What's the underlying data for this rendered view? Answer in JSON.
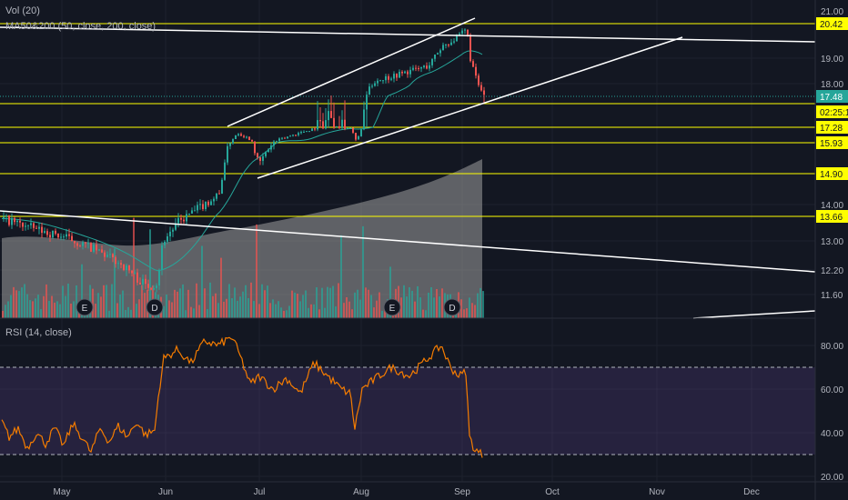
{
  "legends": {
    "volume": "Vol (20)",
    "moving_averages": "MA50&200 (50, close, 200, close)",
    "rsi": "RSI (14, close)"
  },
  "price_axis": {
    "ticks": [
      "21.00",
      "19.00",
      "18.00",
      "14.00",
      "13.00",
      "12.20",
      "11.60"
    ],
    "horizontal_levels": [
      {
        "label": "20.42",
        "value": 20.42,
        "color": "#ffff00"
      },
      {
        "label": "17.28",
        "value": 17.28,
        "color": "#ffff00"
      },
      {
        "label": "15.93",
        "value": 15.93,
        "color": "#ffff00"
      },
      {
        "label": "14.90",
        "value": 14.9,
        "color": "#ffff00"
      },
      {
        "label": "13.66",
        "value": 13.66,
        "color": "#ffff00"
      }
    ],
    "last_price": {
      "label": "17.48",
      "value": 17.48,
      "color": "#26a69a"
    },
    "countdown": "02:25:1",
    "countdown_color": "#ffff00"
  },
  "rsi_axis": {
    "ticks": [
      "80.00",
      "60.00",
      "40.00",
      "20.00"
    ],
    "upper_band": 70,
    "lower_band": 30
  },
  "time_axis": {
    "labels": [
      "May",
      "Jun",
      "Jul",
      "Aug",
      "Sep",
      "Oct",
      "Nov",
      "Dec"
    ]
  },
  "events": [
    {
      "label": "E",
      "type": "earnings"
    },
    {
      "label": "D",
      "type": "dividend"
    },
    {
      "label": "E",
      "type": "earnings"
    },
    {
      "label": "D",
      "type": "dividend"
    }
  ],
  "colors": {
    "background": "#131722",
    "up": "#26a69a",
    "down": "#ef5350",
    "rsi_line": "#f57c00",
    "rsi_band": "#7e57c2",
    "level_line": "#ffff00",
    "trendline": "#ffffff",
    "ma_line": "#26a69a",
    "volume_ma_area": "#9e9e9e"
  }
}
